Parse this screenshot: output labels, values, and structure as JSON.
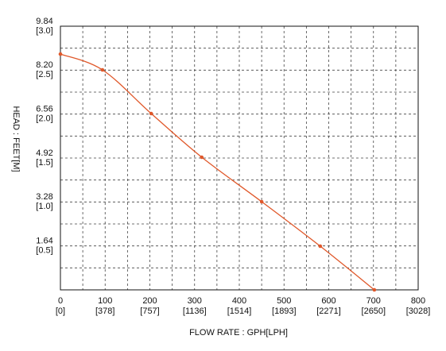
{
  "chart_data": {
    "type": "line",
    "x_label": "FLOW RATE : GPH[LPH]",
    "y_label": "HEAD : FEET[M]",
    "xlim": [
      0,
      800
    ],
    "xticks": [
      0,
      100,
      200,
      300,
      400,
      500,
      600,
      700,
      800
    ],
    "xminor": [
      50,
      150,
      250,
      350,
      450,
      550,
      650,
      750
    ],
    "x2lim": [
      0,
      3028
    ],
    "x2ticks": [
      {
        "value": 0,
        "label": "[0]"
      },
      {
        "value": 378,
        "label": "[378]"
      },
      {
        "value": 757,
        "label": "[757]"
      },
      {
        "value": 1136,
        "label": "[1136]"
      },
      {
        "value": 1514,
        "label": "[1514]"
      },
      {
        "value": 1893,
        "label": "[1893]"
      },
      {
        "value": 2271,
        "label": "[2271]"
      },
      {
        "value": 2650,
        "label": "[2650]"
      },
      {
        "value": 3028,
        "label": "[3028]"
      }
    ],
    "ylim": [
      0,
      9.84
    ],
    "yticks": [
      1.64,
      3.28,
      4.92,
      6.56,
      {
        "value": 8.2,
        "label": "8.20"
      },
      9.84
    ],
    "yminor": [
      0.82,
      2.46,
      4.1,
      5.74,
      7.38,
      9.02
    ],
    "y2lim": [
      0,
      3.0
    ],
    "y2ticks": [
      {
        "value": 0.5,
        "label": "[0.5]"
      },
      {
        "value": 1.0,
        "label": "[1.0]"
      },
      {
        "value": 1.5,
        "label": "[1.5]"
      },
      {
        "value": 2.0,
        "label": "[2.0]"
      },
      {
        "value": 2.5,
        "label": "[2.5]"
      },
      {
        "value": 3.0,
        "label": "[3.0]"
      }
    ],
    "grid": true,
    "series": [
      {
        "color": "#e0582a",
        "x": [
          0,
          94,
          203,
          316,
          450,
          581,
          702
        ],
        "values": [
          8.8,
          8.21,
          6.58,
          4.95,
          3.29,
          1.63,
          0
        ]
      }
    ]
  }
}
